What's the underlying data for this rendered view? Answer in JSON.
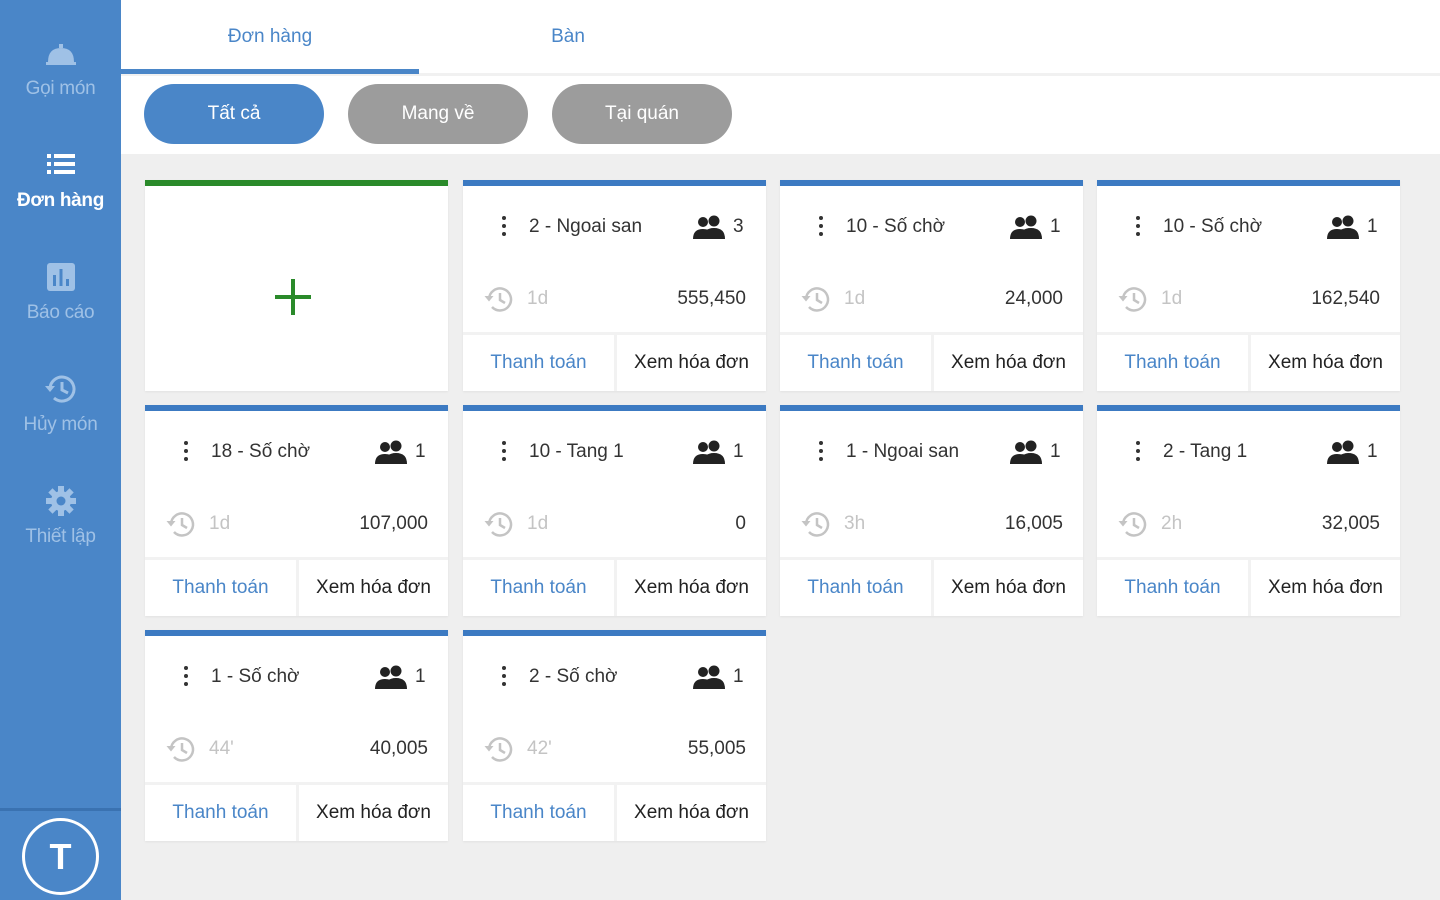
{
  "sidebar": {
    "items": [
      {
        "label": "Gọi món",
        "icon": "service-bell-icon"
      },
      {
        "label": "Đơn hàng",
        "icon": "list-icon"
      },
      {
        "label": "Báo cáo",
        "icon": "report-chart-icon"
      },
      {
        "label": "Hủy món",
        "icon": "history-icon"
      },
      {
        "label": "Thiết lập",
        "icon": "gear-icon"
      }
    ],
    "avatar_initial": "T"
  },
  "tabs": [
    {
      "label": "Đơn hàng",
      "active": true
    },
    {
      "label": "Bàn",
      "active": false
    }
  ],
  "filters": [
    {
      "label": "Tất cả",
      "active": true
    },
    {
      "label": "Mang về",
      "active": false
    },
    {
      "label": "Tại quán",
      "active": false
    }
  ],
  "orders": [
    {
      "table": "2 - Ngoai san",
      "guests": "3",
      "elapsed": "1d",
      "total": "555,450",
      "pay_label": "Thanh toán",
      "view_label": "Xem hóa đơn"
    },
    {
      "table": "10 - Số chờ",
      "guests": "1",
      "elapsed": "1d",
      "total": "24,000",
      "pay_label": "Thanh toán",
      "view_label": "Xem hóa đơn"
    },
    {
      "table": "10 - Số chờ",
      "guests": "1",
      "elapsed": "1d",
      "total": "162,540",
      "pay_label": "Thanh toán",
      "view_label": "Xem hóa đơn"
    },
    {
      "table": "18 - Số chờ",
      "guests": "1",
      "elapsed": "1d",
      "total": "107,000",
      "pay_label": "Thanh toán",
      "view_label": "Xem hóa đơn"
    },
    {
      "table": "10 - Tang 1",
      "guests": "1",
      "elapsed": "1d",
      "total": "0",
      "pay_label": "Thanh toán",
      "view_label": "Xem hóa đơn"
    },
    {
      "table": "1 - Ngoai san",
      "guests": "1",
      "elapsed": "3h",
      "total": "16,005",
      "pay_label": "Thanh toán",
      "view_label": "Xem hóa đơn"
    },
    {
      "table": "2 - Tang 1",
      "guests": "1",
      "elapsed": "2h",
      "total": "32,005",
      "pay_label": "Thanh toán",
      "view_label": "Xem hóa đơn"
    },
    {
      "table": "1 - Số chờ",
      "guests": "1",
      "elapsed": "44'",
      "total": "40,005",
      "pay_label": "Thanh toán",
      "view_label": "Xem hóa đơn"
    },
    {
      "table": "2 - Số chờ",
      "guests": "1",
      "elapsed": "42'",
      "total": "55,005",
      "pay_label": "Thanh toán",
      "view_label": "Xem hóa đơn"
    }
  ],
  "colors": {
    "primary": "#4a86c8",
    "sidebar_bg": "#4a86c8",
    "inactive_chip": "#9c9c9c",
    "add_card_accent": "#2a8a2a",
    "background": "#efefef"
  }
}
